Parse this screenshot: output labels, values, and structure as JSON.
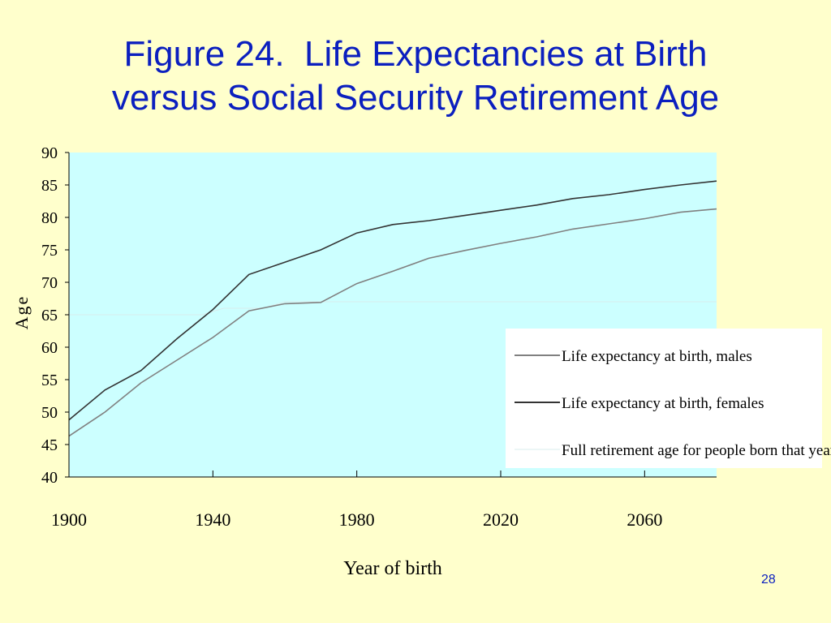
{
  "slide": {
    "title_line1": "Figure 24.  Life Expectancies at Birth",
    "title_line2": "versus Social Security Retirement Age",
    "page_number": "28"
  },
  "colors": {
    "background": "#FFFFCC",
    "plot_area": "#CCFFFF",
    "title": "#0B1FBF",
    "males": "#808080",
    "females": "#333333",
    "retirement": "#D8ECEC",
    "legend_bg": "#FFFFFF"
  },
  "chart_data": {
    "type": "line",
    "xlabel": "Year of birth",
    "ylabel": "Age",
    "xlim": [
      1900,
      2080
    ],
    "ylim": [
      40,
      90
    ],
    "x_ticks": [
      1900,
      1940,
      1980,
      2020,
      2060
    ],
    "y_ticks": [
      40,
      45,
      50,
      55,
      60,
      65,
      70,
      75,
      80,
      85,
      90
    ],
    "grid": false,
    "legend_position": "lower-right",
    "series": [
      {
        "name": "Life expectancy at birth, males",
        "color_key": "males",
        "x": [
          1900,
          1910,
          1920,
          1930,
          1940,
          1950,
          1960,
          1970,
          1980,
          1990,
          2000,
          2010,
          2020,
          2030,
          2040,
          2050,
          2060,
          2070,
          2080
        ],
        "y": [
          46.3,
          50.0,
          54.5,
          58.0,
          61.5,
          65.6,
          66.7,
          66.9,
          69.8,
          71.7,
          73.7,
          74.9,
          76.0,
          77.0,
          78.2,
          79.0,
          79.8,
          80.8,
          81.3
        ]
      },
      {
        "name": "Life expectancy at birth, females",
        "color_key": "females",
        "x": [
          1900,
          1910,
          1920,
          1930,
          1940,
          1950,
          1960,
          1970,
          1980,
          1990,
          2000,
          2010,
          2020,
          2030,
          2040,
          2050,
          2060,
          2070,
          2080
        ],
        "y": [
          48.8,
          53.4,
          56.4,
          61.3,
          65.8,
          71.2,
          73.1,
          75.0,
          77.6,
          78.9,
          79.5,
          80.3,
          81.1,
          81.9,
          82.9,
          83.5,
          84.3,
          85.0,
          85.6
        ]
      },
      {
        "name": "Full retirement age for people born that year",
        "color_key": "retirement",
        "x": [
          1900,
          1937,
          1943,
          1954,
          1960,
          2080
        ],
        "y": [
          65,
          65,
          66,
          66,
          67,
          67
        ]
      }
    ]
  }
}
